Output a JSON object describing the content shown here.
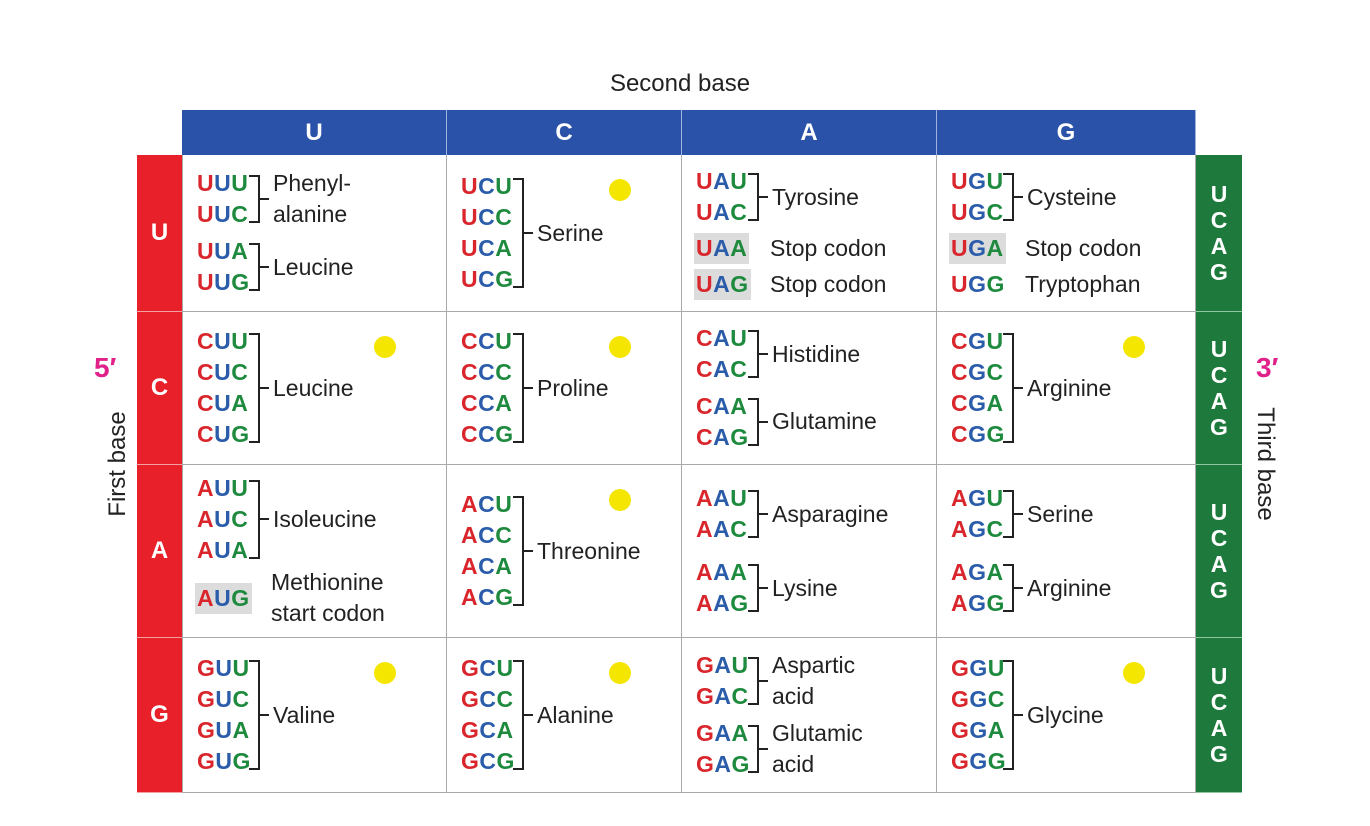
{
  "second_base_title": "Second base",
  "first_base_title": "First base",
  "third_base_title": "Third base",
  "five_prime": "5′",
  "three_prime": "3′",
  "letter_colors": [
    "#d9262c",
    "#2a5caa",
    "#1e8a3e"
  ],
  "columns": [
    "U",
    "C",
    "A",
    "G"
  ],
  "rows": [
    {
      "label": "U",
      "third_base": [
        "U",
        "C",
        "A",
        "G"
      ],
      "cells": [
        {
          "groups": [
            {
              "codons": [
                "UUU",
                "UUC"
              ],
              "label": "Phenyl-\nalanine"
            },
            {
              "codons": [
                "UUA",
                "UUG"
              ],
              "label": "Leucine"
            }
          ]
        },
        {
          "groups": [
            {
              "codons": [
                "UCU",
                "UCC",
                "UCA",
                "UCG"
              ],
              "label": "Serine"
            }
          ]
        },
        {
          "groups": [
            {
              "codons": [
                "UAU",
                "UAC"
              ],
              "label": "Tyrosine"
            },
            {
              "codons": [
                "UAA"
              ],
              "label": "Stop codon",
              "highlight": true
            },
            {
              "codons": [
                "UAG"
              ],
              "label": "Stop codon",
              "highlight": true
            }
          ]
        },
        {
          "groups": [
            {
              "codons": [
                "UGU",
                "UGC"
              ],
              "label": "Cysteine"
            },
            {
              "codons": [
                "UGA"
              ],
              "label": "Stop codon",
              "highlight": true
            },
            {
              "codons": [
                "UGG"
              ],
              "label": "Tryptophan"
            }
          ]
        }
      ]
    },
    {
      "label": "C",
      "third_base": [
        "U",
        "C",
        "A",
        "G"
      ],
      "cells": [
        {
          "groups": [
            {
              "codons": [
                "CUU",
                "CUC",
                "CUA",
                "CUG"
              ],
              "label": "Leucine"
            }
          ]
        },
        {
          "groups": [
            {
              "codons": [
                "CCU",
                "CCC",
                "CCA",
                "CCG"
              ],
              "label": "Proline"
            }
          ]
        },
        {
          "groups": [
            {
              "codons": [
                "CAU",
                "CAC"
              ],
              "label": "Histidine"
            },
            {
              "codons": [
                "CAA",
                "CAG"
              ],
              "label": "Glutamine"
            }
          ]
        },
        {
          "groups": [
            {
              "codons": [
                "CGU",
                "CGC",
                "CGA",
                "CGG"
              ],
              "label": "Arginine"
            }
          ]
        }
      ]
    },
    {
      "label": "A",
      "third_base": [
        "U",
        "C",
        "A",
        "G"
      ],
      "cells": [
        {
          "groups": [
            {
              "codons": [
                "AUU",
                "AUC",
                "AUA"
              ],
              "label": "Isoleucine"
            },
            {
              "codons": [
                "AUG"
              ],
              "label": "Methionine\nstart codon",
              "highlight": true
            }
          ]
        },
        {
          "groups": [
            {
              "codons": [
                "ACU",
                "ACC",
                "ACA",
                "ACG"
              ],
              "label": "Threonine"
            }
          ]
        },
        {
          "groups": [
            {
              "codons": [
                "AAU",
                "AAC"
              ],
              "label": "Asparagine"
            },
            {
              "codons": [
                "AAA",
                "AAG"
              ],
              "label": "Lysine"
            }
          ]
        },
        {
          "groups": [
            {
              "codons": [
                "AGU",
                "AGC"
              ],
              "label": "Serine"
            },
            {
              "codons": [
                "AGA",
                "AGG"
              ],
              "label": "Arginine"
            }
          ]
        }
      ]
    },
    {
      "label": "G",
      "third_base": [
        "U",
        "C",
        "A",
        "G"
      ],
      "cells": [
        {
          "groups": [
            {
              "codons": [
                "GUU",
                "GUC",
                "GUA",
                "GUG"
              ],
              "label": "Valine"
            }
          ]
        },
        {
          "groups": [
            {
              "codons": [
                "GCU",
                "GCC",
                "GCA",
                "GCG"
              ],
              "label": "Alanine"
            }
          ]
        },
        {
          "groups": [
            {
              "codons": [
                "GAU",
                "GAC"
              ],
              "label": "Aspartic\nacid"
            },
            {
              "codons": [
                "GAA",
                "GAG"
              ],
              "label": "Glutamic\nacid"
            }
          ]
        },
        {
          "groups": [
            {
              "codons": [
                "GGU",
                "GGC",
                "GGA",
                "GGG"
              ],
              "label": "Glycine"
            }
          ]
        }
      ]
    }
  ]
}
